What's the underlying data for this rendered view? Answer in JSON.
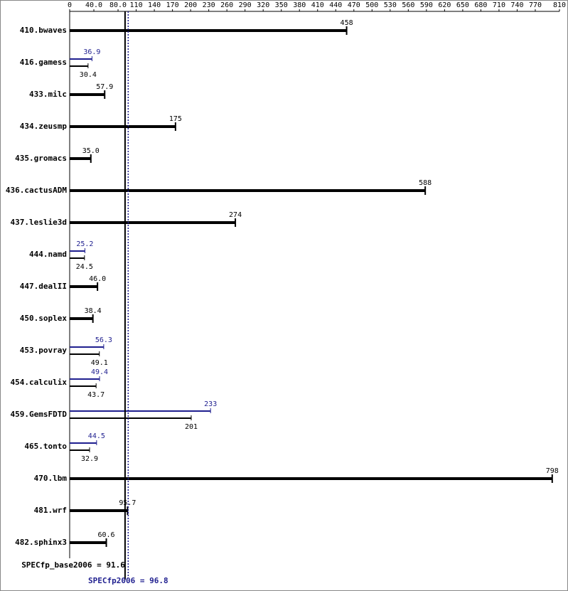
{
  "chart_data": {
    "type": "hbar",
    "categories": [
      "410.bwaves",
      "416.gamess",
      "433.milc",
      "434.zeusmp",
      "435.gromacs",
      "436.cactusADM",
      "437.leslie3d",
      "444.namd",
      "447.dealII",
      "450.soplex",
      "453.povray",
      "454.calculix",
      "459.GemsFDTD",
      "465.tonto",
      "470.lbm",
      "481.wrf",
      "482.sphinx3"
    ],
    "series": [
      {
        "color": "#000000",
        "values": [
          458,
          30.4,
          57.9,
          175,
          35.0,
          588,
          274,
          24.5,
          46.0,
          38.4,
          49.1,
          43.7,
          201,
          32.9,
          798,
          95.7,
          60.6
        ],
        "value_labels": [
          "458",
          "30.4",
          "57.9",
          "175",
          "35.0",
          "588",
          "274",
          "24.5",
          "46.0",
          "38.4",
          "49.1",
          "43.7",
          "201",
          "32.9",
          "798",
          "95.7",
          "60.6"
        ]
      },
      {
        "color": "#1f1f8f",
        "values": [
          null,
          36.9,
          null,
          null,
          null,
          null,
          null,
          25.2,
          null,
          null,
          56.3,
          49.4,
          233,
          44.5,
          null,
          null,
          null
        ],
        "value_labels": [
          null,
          "36.9",
          null,
          null,
          null,
          null,
          null,
          "25.2",
          null,
          null,
          "56.3",
          "49.4",
          "233",
          "44.5",
          null,
          null,
          null
        ]
      }
    ],
    "xlim": [
      0,
      810
    ],
    "xticks": [
      0,
      {
        "value": 40,
        "label": "40.0"
      },
      {
        "value": 80,
        "label": "80.0"
      },
      110,
      140,
      170,
      200,
      230,
      260,
      290,
      320,
      350,
      380,
      410,
      440,
      470,
      500,
      530,
      560,
      590,
      620,
      650,
      680,
      710,
      740,
      770,
      810
    ],
    "reference_lines": [
      {
        "label": "SPECfp_base2006 =",
        "value": 91.6,
        "color": "#000000",
        "style": "solid"
      },
      {
        "label": "SPECfp2006 =",
        "value": 96.8,
        "color": "#1f1f8f",
        "style": "dotted"
      }
    ]
  }
}
